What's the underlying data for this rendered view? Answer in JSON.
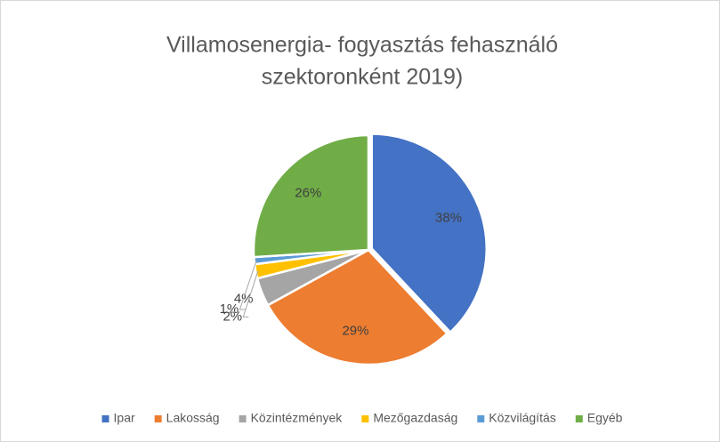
{
  "chart_data": {
    "type": "pie",
    "title": [
      "Villamosenergia- fogyasztás fehasználó",
      "szektoronként 2019)"
    ],
    "categories": [
      "Ipar",
      "Lakosság",
      "Közintézmények",
      "Mezőgazdaság",
      "Közvilágítás",
      "Egyéb"
    ],
    "values": [
      38,
      29,
      4,
      2,
      1,
      26
    ],
    "value_labels": [
      "38%",
      "29%",
      "4%",
      "2%",
      "1%",
      "26%"
    ],
    "colors": [
      "#4472c4",
      "#ed7d31",
      "#a5a5a5",
      "#ffc000",
      "#5b9bd5",
      "#70ad47"
    ],
    "legend": "bottom"
  }
}
